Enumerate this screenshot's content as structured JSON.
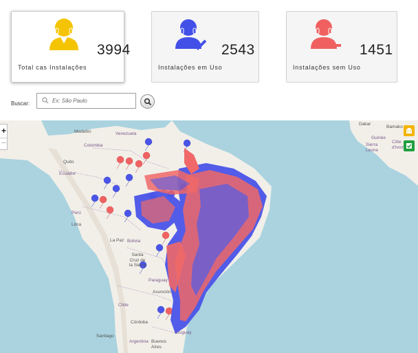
{
  "cards": [
    {
      "id": "total",
      "count": "3994",
      "label": "Total cas Instalações",
      "color": "#f5c400"
    },
    {
      "id": "used",
      "count": "2543",
      "label": "Instalações em Uso",
      "color": "#4350e8"
    },
    {
      "id": "unused",
      "count": "1451",
      "label": "Instalações sem Uso",
      "color": "#f06060"
    }
  ],
  "search": {
    "label": "Buscar:",
    "placeholder": "Ex: São Paulo",
    "button_icon": "search-icon"
  },
  "map": {
    "zoom_in": "+",
    "legend": [
      {
        "name": "legend-in-use",
        "icon": "building-icon",
        "color": "#f4b400"
      },
      {
        "name": "legend-check",
        "icon": "check-icon",
        "color": "#1e9e3e"
      }
    ],
    "marker_colors": {
      "in_use": "#4a55e8",
      "unused": "#f06262"
    },
    "labels": {
      "medellin": "Medellín",
      "venezuela": "Venezuela",
      "colombia": "Colombia",
      "quito": "Quito",
      "ecuador": "Ecuador",
      "peru": "Perú",
      "lima": "Lima",
      "lapaz": "La Paz",
      "bolivia": "Bolivia",
      "santacruz": "Santa\nCruz de\nla Sierra",
      "paraguay": "Paraguay",
      "asuncion": "Asunción",
      "chile": "Chile",
      "cordoba": "Córdoba",
      "santiago": "Santiago",
      "argentina": "Argentina",
      "buenosaires": "Buenos\nAires",
      "uruguay": "Uruguay",
      "dakar": "Dakar",
      "bamako": "Bamako",
      "guinee": "Guinée",
      "sierraleone": "Sierra\nLeone",
      "cotedivoire": "Côte\nd'Ivoire"
    }
  }
}
